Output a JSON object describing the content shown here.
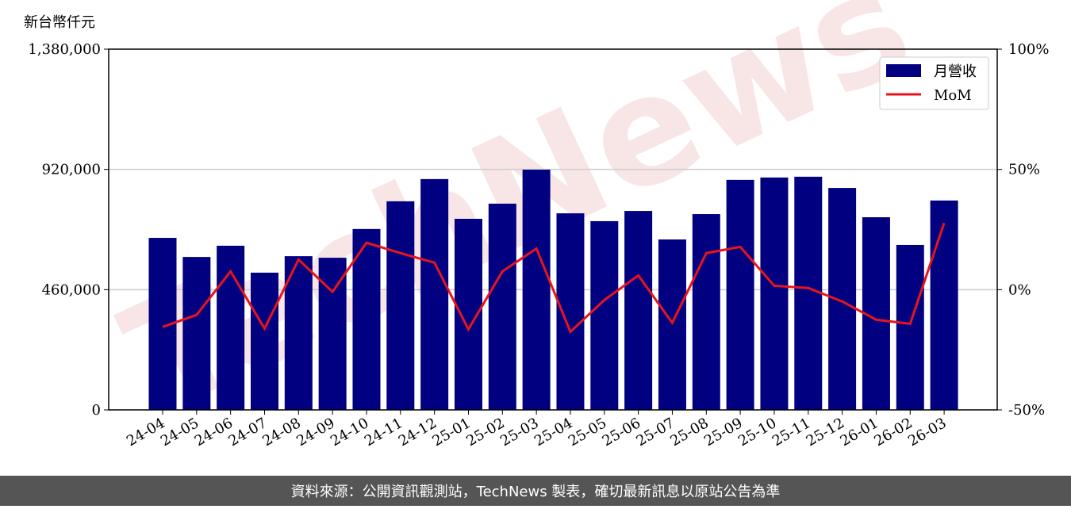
{
  "chart_data": {
    "type": "bar_line",
    "y_label": "新台幣仟元",
    "categories": [
      "24-04",
      "24-05",
      "24-06",
      "24-07",
      "24-08",
      "24-09",
      "24-10",
      "24-11",
      "24-12",
      "25-01",
      "25-02",
      "25-03",
      "25-04",
      "25-05",
      "25-06",
      "25-07",
      "25-08",
      "25-09",
      "25-10",
      "25-11",
      "25-12",
      "26-01",
      "26-02",
      "26-03"
    ],
    "series": [
      {
        "name": "月營收",
        "type": "bar",
        "color": "#000080",
        "values": [
          658000,
          585000,
          628000,
          525000,
          588000,
          582000,
          692000,
          798000,
          883000,
          731000,
          789000,
          919000,
          752000,
          722000,
          761000,
          652000,
          749000,
          880000,
          889000,
          892000,
          849000,
          737000,
          631000,
          801000
        ]
      },
      {
        "name": "MoM",
        "type": "line",
        "axis": "y2",
        "color": "#e8141c",
        "values": [
          -15.5,
          -10.5,
          7.6,
          -16.2,
          12.5,
          -0.9,
          19.5,
          15.2,
          11.2,
          -16.5,
          7.6,
          17.1,
          -17.5,
          -4.3,
          5.9,
          -13.8,
          15.2,
          17.8,
          1.6,
          0.7,
          -4.9,
          -12.5,
          -14.2,
          27.7
        ]
      }
    ],
    "ylim": [
      0,
      1380000
    ],
    "yticks": [
      0,
      {
        "value": 460000,
        "label": "460,000"
      },
      {
        "value": 920000,
        "label": "920,000"
      },
      {
        "value": 1380000,
        "label": "1,380,000"
      }
    ],
    "y2lim": [
      -50,
      100
    ],
    "y2ticks": [
      {
        "value": -50,
        "label": "-50%"
      },
      {
        "value": 0,
        "label": "0%"
      },
      {
        "value": 50,
        "label": "50%"
      },
      {
        "value": 100,
        "label": "100%"
      }
    ],
    "grid": true,
    "legend": "upper right",
    "watermark": "TechNews",
    "footer": "資料來源：公開資訊觀測站，TechNews 製表，確切最新訊息以原站公告為準"
  }
}
